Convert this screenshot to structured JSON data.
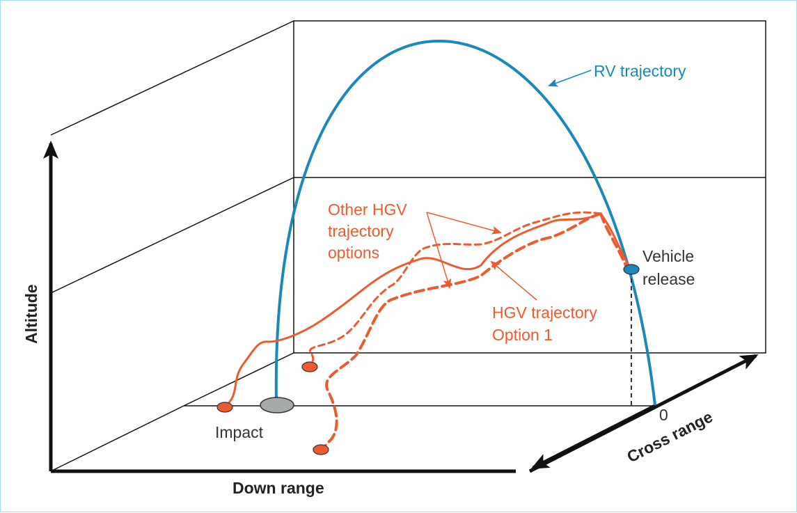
{
  "colors": {
    "rv": "#1a88b8",
    "hgv": "#ee5a2f",
    "frame": "#111111",
    "impact_marker": "#a6aaa8",
    "release_marker": "#1a88b8"
  },
  "labels": {
    "rv_trajectory": "RV trajectory",
    "other_hgv_line1": "Other HGV",
    "other_hgv_line2": "trajectory",
    "other_hgv_line3": "options",
    "hgv_option_line1": "HGV trajectory",
    "hgv_option_line2": "Option 1",
    "vehicle_release_line1": "Vehicle",
    "vehicle_release_line2": "release",
    "impact": "Impact",
    "zero": "0",
    "altitude": "Altitude",
    "down_range": "Down range",
    "cross_range": "Cross range"
  }
}
